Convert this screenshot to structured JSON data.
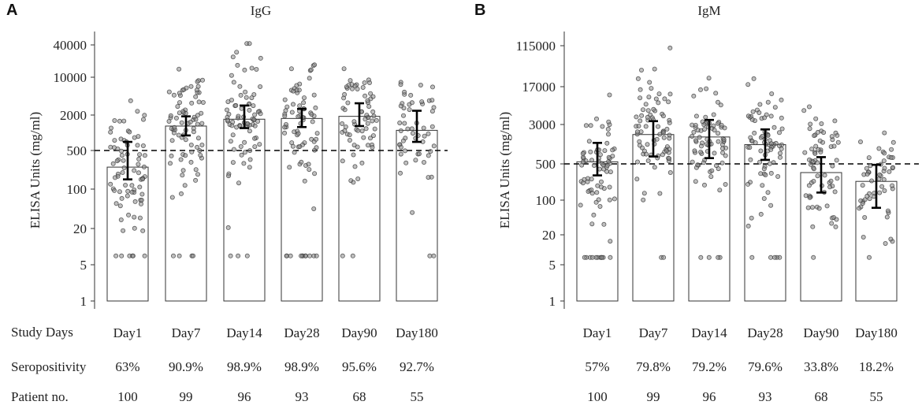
{
  "panels": {
    "A": {
      "letter": "A"
    },
    "B": {
      "letter": "B"
    }
  },
  "row_labels": {
    "days": "Study Days",
    "sero": "Seropositivity",
    "patients": "Patient no."
  },
  "chart_data": [
    {
      "type": "bar",
      "title": "IgG",
      "ylabel": "ELISA Units (mg/ml)",
      "xlabel": "Study Days",
      "yscale": "log",
      "ylim": [
        1,
        50000
      ],
      "yticks": [
        1,
        5,
        20,
        100,
        500,
        2000,
        10000,
        40000
      ],
      "ytick_labels": [
        "1",
        "5",
        "20",
        "100",
        "500",
        "2000",
        "10000",
        "40000"
      ],
      "threshold": 500,
      "categories": [
        "Day1",
        "Day7",
        "Day14",
        "Day28",
        "Day90",
        "Day180"
      ],
      "values": [
        250,
        1300,
        1700,
        1750,
        1900,
        1100
      ],
      "ci_low": [
        150,
        900,
        1200,
        1250,
        1300,
        700
      ],
      "ci_high": [
        700,
        1900,
        3000,
        2600,
        3300,
        2400
      ],
      "seropositivity": [
        "63%",
        "90.9%",
        "98.9%",
        "98.9%",
        "95.6%",
        "92.7%"
      ],
      "patients": [
        "100",
        "99",
        "96",
        "93",
        "68",
        "55"
      ]
    },
    {
      "type": "bar",
      "title": "IgM",
      "ylabel": "ELISA Units (mg/ml)",
      "xlabel": "Study Days",
      "yscale": "log",
      "ylim": [
        1,
        150000
      ],
      "yticks": [
        1,
        5,
        20,
        100,
        500,
        3000,
        17000,
        115000
      ],
      "ytick_labels": [
        "1",
        "5",
        "20",
        "100",
        "500",
        "3000",
        "17000",
        "115000"
      ],
      "threshold": 500,
      "categories": [
        "Day1",
        "Day7",
        "Day14",
        "Day28",
        "Day90",
        "Day180"
      ],
      "values": [
        550,
        1900,
        1700,
        1200,
        340,
        230
      ],
      "ci_low": [
        300,
        700,
        650,
        600,
        140,
        70
      ],
      "ci_high": [
        1300,
        3500,
        3700,
        2400,
        680,
        480
      ],
      "seropositivity": [
        "57%",
        "79.8%",
        "79.2%",
        "79.6%",
        "33.8%",
        "18.2%"
      ],
      "patients": [
        "100",
        "99",
        "96",
        "93",
        "68",
        "55"
      ]
    }
  ],
  "colors": {
    "bar_fill": "#ffffff",
    "bar_stroke": "#333333",
    "axis": "#333333",
    "dot_fill": "#8a8a8a",
    "dot_stroke": "#3a3a3a",
    "errbar": "#000000",
    "threshold": "#000000"
  }
}
